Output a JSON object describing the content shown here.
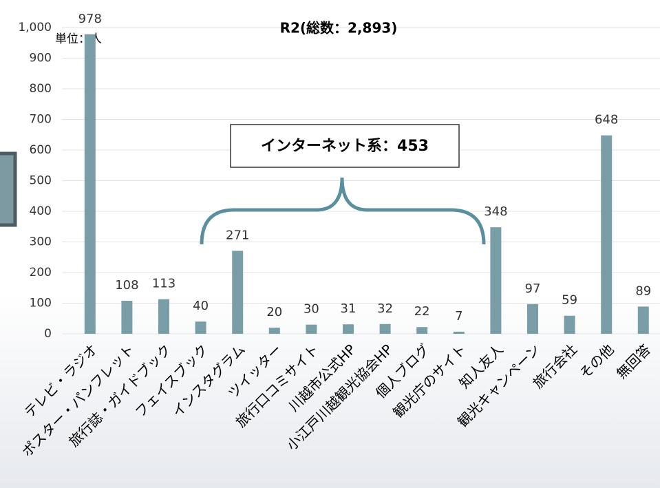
{
  "chart_data": {
    "type": "bar",
    "title": "R2(総数：2,893)",
    "unit_label": "単位：人",
    "annotation": "インターネット系：453",
    "categories": [
      "テレビ・ラジオ",
      "ポスター・パンフレット",
      "旅行誌・ガイドブック",
      "フェイスブック",
      "インスタグラム",
      "ツイッター",
      "旅行口コミサイト",
      "川越市公式HP",
      "小江戸川越観光協会HP",
      "個人ブログ",
      "観光庁のサイト",
      "知人友人",
      "観光キャンペーン",
      "旅行会社",
      "その他",
      "無回答"
    ],
    "values": [
      978,
      108,
      113,
      40,
      271,
      20,
      30,
      31,
      32,
      22,
      7,
      348,
      97,
      59,
      648,
      89
    ],
    "color": "#7a9ea8",
    "ylim": [
      0,
      1000
    ],
    "yticks": [
      0,
      100,
      200,
      300,
      400,
      500,
      600,
      700,
      800,
      900,
      {
        "value": 1000,
        "label": "1,000"
      }
    ],
    "grid": true
  }
}
